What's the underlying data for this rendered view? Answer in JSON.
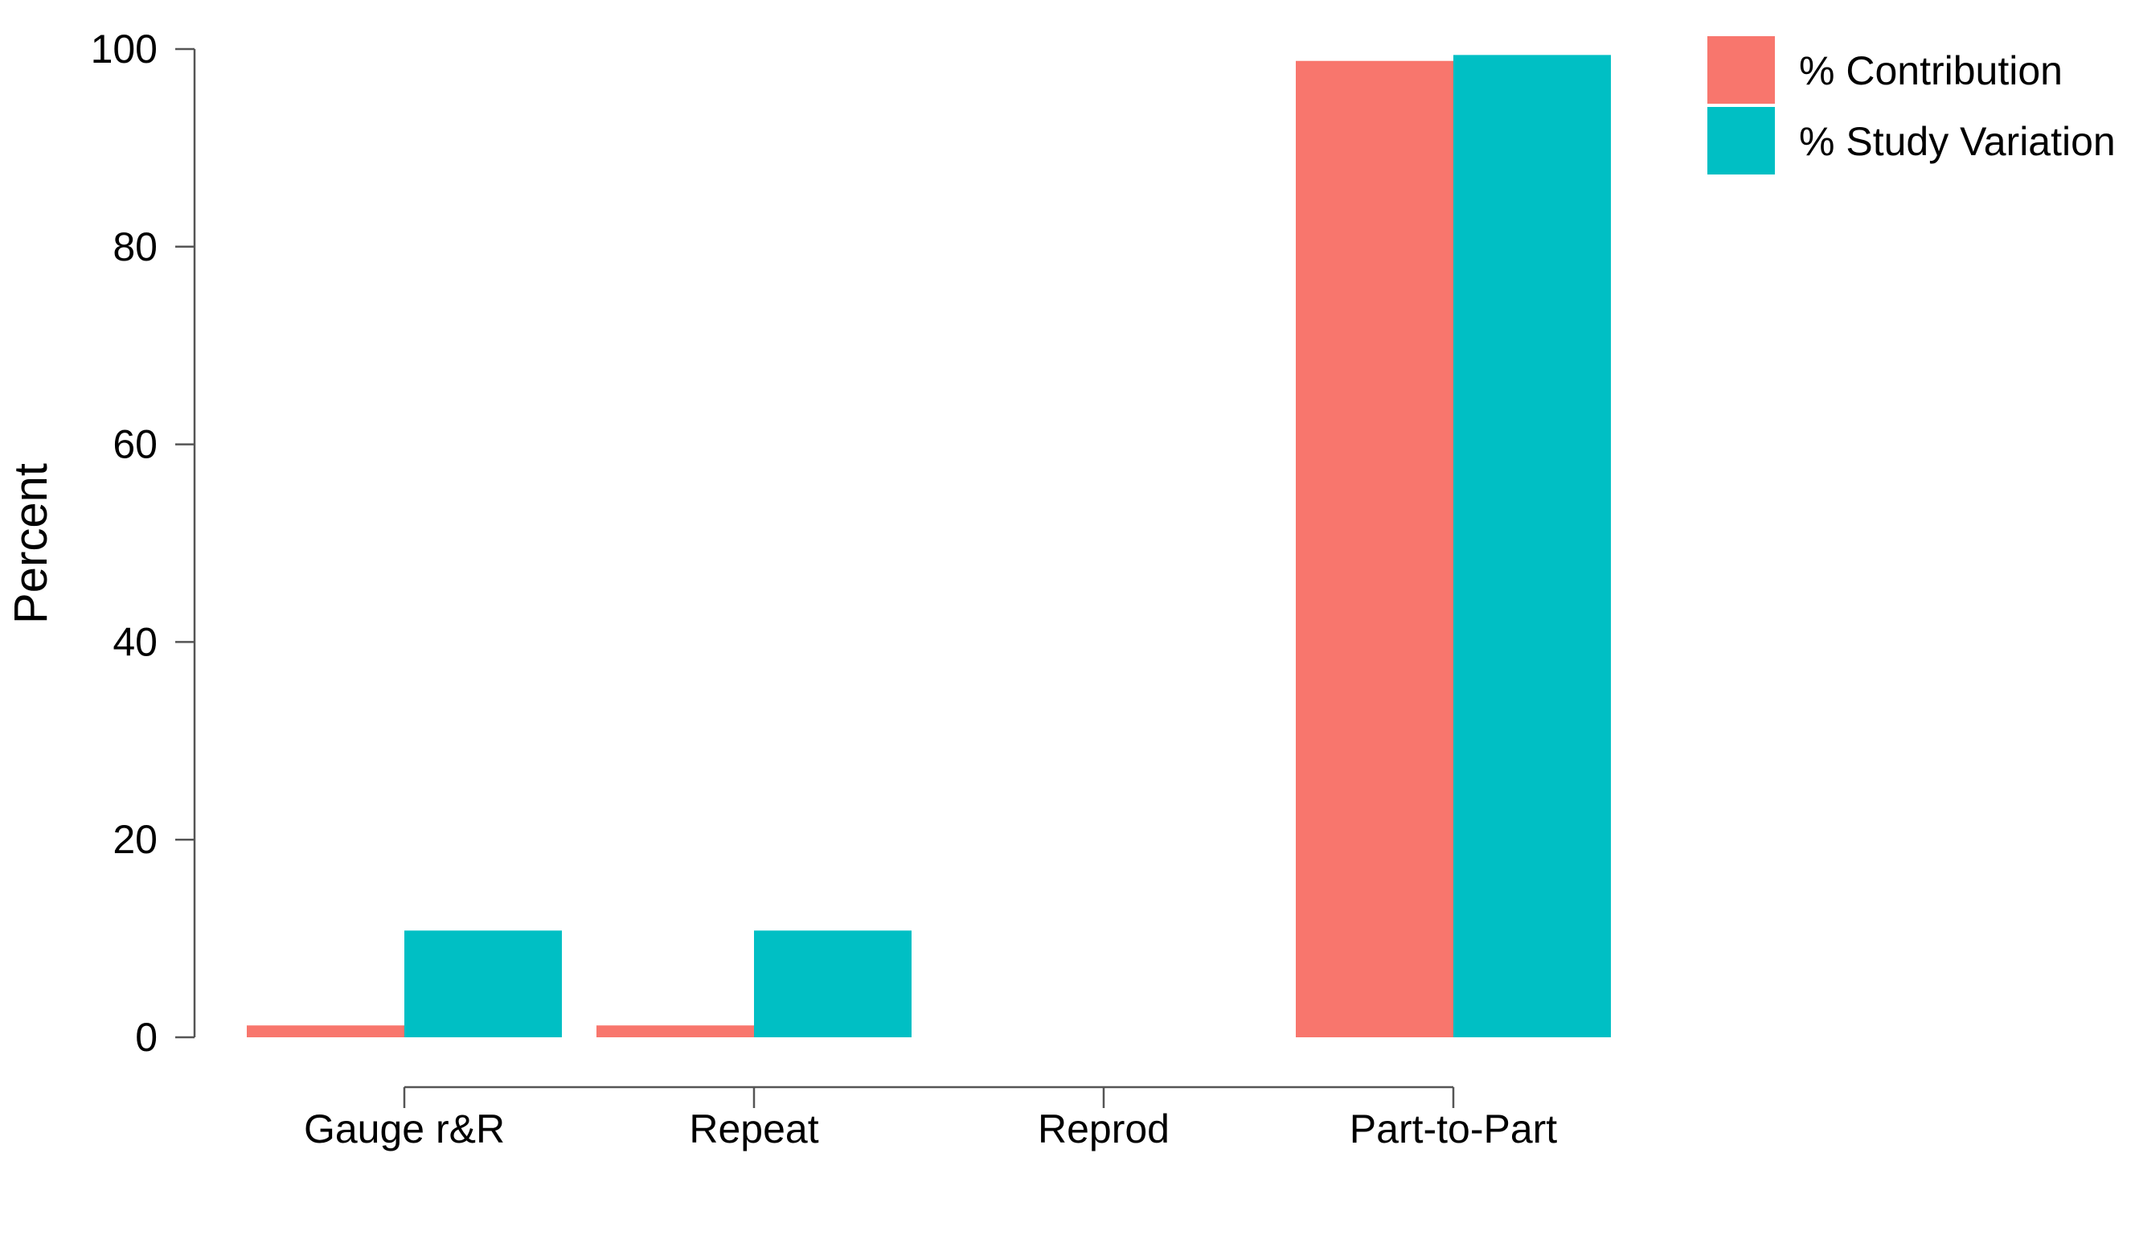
{
  "colors": {
    "contribution": "#F8766D",
    "study_variation": "#00BFC4"
  },
  "chart_data": {
    "type": "bar",
    "categories": [
      "Gauge r&R",
      "Repeat",
      "Reprod",
      "Part-to-Part"
    ],
    "series": [
      {
        "name": "% Contribution",
        "values": [
          1.2,
          1.2,
          0,
          98.8
        ],
        "color": "#F8766D"
      },
      {
        "name": "% Study Variation",
        "values": [
          10.8,
          10.8,
          0,
          99.4
        ],
        "color": "#00BFC4"
      }
    ],
    "ylabel": "Percent",
    "xlabel": "",
    "ylim": [
      0,
      100
    ],
    "yticks": [
      0,
      20,
      40,
      60,
      80,
      100
    ],
    "grid": false,
    "legend": "top-right"
  }
}
